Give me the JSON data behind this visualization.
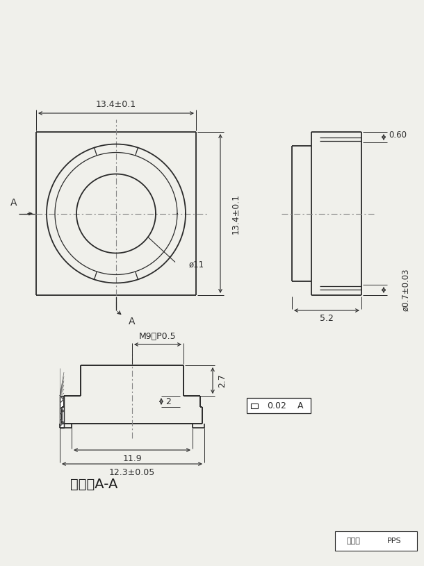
{
  "bg_color": "#f0f0eb",
  "line_color": "#2a2a2a",
  "dim_color": "#2a2a2a",
  "centerline_color": "#888888",
  "title": "截面：A-A",
  "material_label": "材料：",
  "material_value": "PPS",
  "dims": {
    "top_width": "13.4±0.1",
    "right_height": "13.4±0.1",
    "side_width": "0.60",
    "side_height": "ø0.7±0.03",
    "side_bottom_width": "5.2",
    "inner_dia": "ø11",
    "section_m9": "M9＊P0.5",
    "section_dim1": "11.9",
    "section_dim2": "12.3±0.05",
    "section_dim3": "2.7",
    "section_dim4": "2",
    "flatness": "0.02",
    "flatness_ref": "A"
  }
}
